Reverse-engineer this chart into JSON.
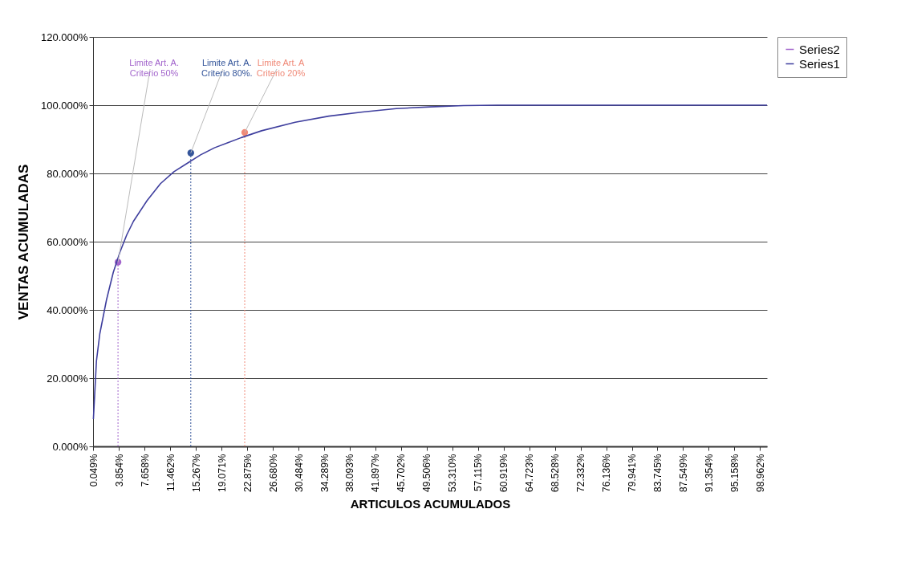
{
  "chart_data": {
    "type": "line",
    "xlabel": "ARTICULOS ACUMULADOS",
    "ylabel": "VENTAS ACUMULADAS",
    "xlim": [
      0,
      100
    ],
    "ylim": [
      0,
      120
    ],
    "xticks": [
      {
        "value": 0.049,
        "label": "0.049%"
      },
      {
        "value": 3.854,
        "label": "3.854%"
      },
      {
        "value": 7.658,
        "label": "7.658%"
      },
      {
        "value": 11.462,
        "label": "11.462%"
      },
      {
        "value": 15.267,
        "label": "15.267%"
      },
      {
        "value": 19.071,
        "label": "19.071%"
      },
      {
        "value": 22.875,
        "label": "22.875%"
      },
      {
        "value": 26.68,
        "label": "26.680%"
      },
      {
        "value": 30.484,
        "label": "30.484%"
      },
      {
        "value": 34.289,
        "label": "34.289%"
      },
      {
        "value": 38.093,
        "label": "38.093%"
      },
      {
        "value": 41.897,
        "label": "41.897%"
      },
      {
        "value": 45.702,
        "label": "45.702%"
      },
      {
        "value": 49.506,
        "label": "49.506%"
      },
      {
        "value": 53.31,
        "label": "53.310%"
      },
      {
        "value": 57.115,
        "label": "57.115%"
      },
      {
        "value": 60.919,
        "label": "60.919%"
      },
      {
        "value": 64.723,
        "label": "64.723%"
      },
      {
        "value": 68.528,
        "label": "68.528%"
      },
      {
        "value": 72.332,
        "label": "72.332%"
      },
      {
        "value": 76.136,
        "label": "76.136%"
      },
      {
        "value": 79.941,
        "label": "79.941%"
      },
      {
        "value": 83.745,
        "label": "83.745%"
      },
      {
        "value": 87.549,
        "label": "87.549%"
      },
      {
        "value": 91.354,
        "label": "91.354%"
      },
      {
        "value": 95.158,
        "label": "95.158%"
      },
      {
        "value": 98.962,
        "label": "98.962%"
      }
    ],
    "yticks": [
      {
        "value": 0,
        "label": "0.000%"
      },
      {
        "value": 20,
        "label": "20.000%"
      },
      {
        "value": 40,
        "label": "40.000%"
      },
      {
        "value": 60,
        "label": "60.000%"
      },
      {
        "value": 80,
        "label": "80.000%"
      },
      {
        "value": 100,
        "label": "100.000%"
      },
      {
        "value": 120,
        "label": "120.000%"
      }
    ],
    "grid": "y",
    "legend": "right",
    "series": [
      {
        "name": "Series2",
        "type": "scatter",
        "marker": "circle",
        "color": "#a366cc",
        "colors": [
          "#a366cc",
          "#34559a",
          "#f08a78"
        ],
        "x": [
          3.7,
          14.5,
          22.5
        ],
        "values": [
          54,
          86,
          92
        ],
        "errors": [
          [
            0,
            54
          ],
          [
            0,
            86
          ],
          [
            0,
            92
          ]
        ]
      },
      {
        "name": "Series1",
        "type": "line",
        "color": "#3f3f9e",
        "x": [
          0.049,
          0.5,
          1,
          2,
          3,
          4,
          5,
          6,
          8,
          10,
          12,
          14,
          16,
          18,
          20,
          22,
          25,
          30,
          35,
          40,
          45,
          50,
          55,
          60,
          100
        ],
        "values": [
          8,
          25,
          33,
          43,
          51,
          57,
          62,
          66,
          72,
          77,
          80.5,
          83,
          85.5,
          87.5,
          89,
          90.5,
          92.5,
          95,
          96.8,
          98,
          99,
          99.5,
          99.9,
          100,
          100
        ]
      }
    ],
    "annotations": [
      {
        "text": "Limite Art. A.\nCriterio 50%",
        "x": 3.7,
        "y": 54
      },
      {
        "text": "Limite Art. A.\nCriterio 80%.",
        "x": 14.5,
        "y": 86
      },
      {
        "text": "Limite Art. A\nCriterio 20%",
        "x": 22.5,
        "y": 92
      }
    ]
  }
}
